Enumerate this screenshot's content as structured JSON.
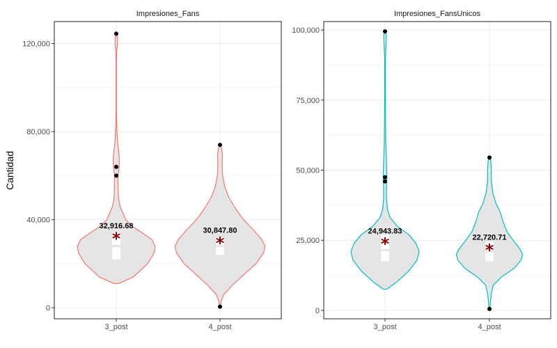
{
  "chart_data": {
    "type": "violin",
    "ylabel": "Cantidad",
    "colors": {
      "fill": "#e5e5e5",
      "mean_marker": "#8b0000",
      "outlier": "#000000"
    },
    "panels": [
      {
        "title": "Impresiones_Fans",
        "color": "#f8766d",
        "ylim": [
          -5000,
          130000
        ],
        "yticks": [
          0,
          40000,
          80000,
          120000
        ],
        "ytick_labels": [
          "0",
          "40,000",
          "80,000",
          "120,000"
        ],
        "categories": [
          "3_post",
          "4_post"
        ],
        "groups": [
          {
            "name": "3_post",
            "min": 11000,
            "max": 124500,
            "mean": 32916.68,
            "mean_label": "32,916.68",
            "box": {
              "q1": 22000,
              "median": 28000,
              "q3": 34000
            },
            "outliers": [
              124500,
              64000,
              60000
            ],
            "density": [
              [
                11000,
                0.05
              ],
              [
                14000,
                0.36
              ],
              [
                20000,
                0.66
              ],
              [
                25000,
                0.8
              ],
              [
                28000,
                0.82
              ],
              [
                31000,
                0.75
              ],
              [
                34000,
                0.55
              ],
              [
                37000,
                0.34
              ],
              [
                40000,
                0.2
              ],
              [
                43000,
                0.14
              ],
              [
                46000,
                0.08
              ],
              [
                50000,
                0.045
              ],
              [
                55000,
                0.04
              ],
              [
                60000,
                0.035
              ],
              [
                64000,
                0.06
              ],
              [
                68000,
                0.065
              ],
              [
                72000,
                0.045
              ],
              [
                76000,
                0.025
              ],
              [
                82000,
                0.012
              ],
              [
                90000,
                0.005
              ],
              [
                100000,
                0.004
              ],
              [
                110000,
                0.004
              ],
              [
                116000,
                0.008
              ],
              [
                120000,
                0.025
              ],
              [
                123000,
                0.02
              ],
              [
                124500,
                0.004
              ]
            ]
          },
          {
            "name": "4_post",
            "min": 500,
            "max": 74000,
            "mean": 30847.8,
            "mean_label": "30,847.80",
            "box": {
              "q1": 24000,
              "median": 28000,
              "q3": 32000
            },
            "outliers": [
              74000,
              500
            ],
            "density": [
              [
                500,
                0.01
              ],
              [
                3000,
                0.025
              ],
              [
                6000,
                0.08
              ],
              [
                10000,
                0.25
              ],
              [
                15000,
                0.5
              ],
              [
                20000,
                0.76
              ],
              [
                25000,
                0.92
              ],
              [
                28000,
                0.95
              ],
              [
                31000,
                0.88
              ],
              [
                35000,
                0.72
              ],
              [
                40000,
                0.5
              ],
              [
                45000,
                0.33
              ],
              [
                50000,
                0.19
              ],
              [
                55000,
                0.1
              ],
              [
                60000,
                0.055
              ],
              [
                65000,
                0.045
              ],
              [
                70000,
                0.05
              ],
              [
                73000,
                0.025
              ],
              [
                74000,
                0.004
              ]
            ]
          }
        ]
      },
      {
        "title": "Impresiones_FansUnicos",
        "color": "#00bfc4",
        "ylim": [
          -3000,
          103000
        ],
        "yticks": [
          0,
          25000,
          50000,
          75000,
          100000
        ],
        "ytick_labels": [
          "0",
          "25,000",
          "50,000",
          "75,000",
          "100,000"
        ],
        "categories": [
          "3_post",
          "4_post"
        ],
        "groups": [
          {
            "name": "3_post",
            "min": 7500,
            "max": 99500,
            "mean": 24943.83,
            "mean_label": "24,943.83",
            "box": {
              "q1": 17500,
              "median": 21500,
              "q3": 27000
            },
            "outliers": [
              99500,
              47500,
              46000
            ],
            "density": [
              [
                7500,
                0.03
              ],
              [
                10000,
                0.24
              ],
              [
                14000,
                0.5
              ],
              [
                18000,
                0.68
              ],
              [
                21000,
                0.72
              ],
              [
                24000,
                0.65
              ],
              [
                27000,
                0.5
              ],
              [
                30000,
                0.26
              ],
              [
                33000,
                0.11
              ],
              [
                36000,
                0.05
              ],
              [
                40000,
                0.03
              ],
              [
                44000,
                0.03
              ],
              [
                47000,
                0.04
              ],
              [
                50000,
                0.035
              ],
              [
                55000,
                0.025
              ],
              [
                60000,
                0.015
              ],
              [
                70000,
                0.01
              ],
              [
                80000,
                0.008
              ],
              [
                90000,
                0.008
              ],
              [
                95000,
                0.02
              ],
              [
                98000,
                0.028
              ],
              [
                99500,
                0.004
              ]
            ]
          },
          {
            "name": "4_post",
            "min": 500,
            "max": 54500,
            "mean": 22720.71,
            "mean_label": "22,720.71",
            "box": {
              "q1": 17500,
              "median": 21000,
              "q3": 24500
            },
            "outliers": [
              54500,
              500
            ],
            "density": [
              [
                500,
                0.01
              ],
              [
                3000,
                0.02
              ],
              [
                6000,
                0.04
              ],
              [
                9000,
                0.08
              ],
              [
                12000,
                0.26
              ],
              [
                15000,
                0.52
              ],
              [
                18000,
                0.67
              ],
              [
                20000,
                0.7
              ],
              [
                22000,
                0.64
              ],
              [
                25000,
                0.5
              ],
              [
                28000,
                0.37
              ],
              [
                32000,
                0.28
              ],
              [
                35000,
                0.23
              ],
              [
                38000,
                0.14
              ],
              [
                42000,
                0.07
              ],
              [
                46000,
                0.04
              ],
              [
                50000,
                0.04
              ],
              [
                53000,
                0.03
              ],
              [
                54500,
                0.004
              ]
            ]
          }
        ]
      }
    ]
  }
}
